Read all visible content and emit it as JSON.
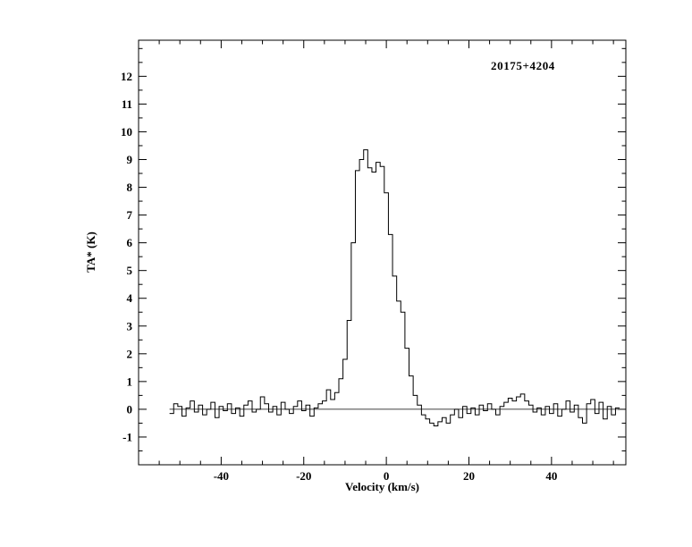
{
  "page": {
    "background": "#ffffff",
    "foreground": "#000000"
  },
  "chart_data": {
    "type": "line",
    "style": "histogram-step",
    "title": "20175+4204",
    "xlabel": "Velocity (km/s)",
    "ylabel": "TA* (K)",
    "xlim": [
      -60,
      58
    ],
    "ylim": [
      -2,
      13.3
    ],
    "x_major_ticks": [
      -40,
      -20,
      0,
      20,
      40
    ],
    "x_tick_labels": [
      "-40",
      "-20",
      "0",
      "20",
      "40"
    ],
    "x_minor_step": 5,
    "y_major_ticks": [
      -1,
      0,
      1,
      2,
      3,
      4,
      5,
      6,
      7,
      8,
      9,
      10,
      11,
      12
    ],
    "y_tick_labels": [
      "-1",
      "0",
      "1",
      "2",
      "3",
      "4",
      "5",
      "6",
      "7",
      "8",
      "9",
      "10",
      "11",
      "12"
    ],
    "y_minor_step": 0.5,
    "zero_line": true,
    "line_color": "#000000",
    "channel_width": 1.0,
    "peak_value": 9.35,
    "peak_velocity": -5,
    "x": [
      -52,
      -51,
      -50,
      -49,
      -48,
      -47,
      -46,
      -45,
      -44,
      -43,
      -42,
      -41,
      -40,
      -39,
      -38,
      -37,
      -36,
      -35,
      -34,
      -33,
      -32,
      -31,
      -30,
      -29,
      -28,
      -27,
      -26,
      -25,
      -24,
      -23,
      -22,
      -21,
      -20,
      -19,
      -18,
      -17,
      -16,
      -15,
      -14,
      -13,
      -12,
      -11,
      -10,
      -9,
      -8,
      -7,
      -6,
      -5,
      -4,
      -3,
      -2,
      -1,
      0,
      1,
      2,
      3,
      4,
      5,
      6,
      7,
      8,
      9,
      10,
      11,
      12,
      13,
      14,
      15,
      16,
      17,
      18,
      19,
      20,
      21,
      22,
      23,
      24,
      25,
      26,
      27,
      28,
      29,
      30,
      31,
      32,
      33,
      34,
      35,
      36,
      37,
      38,
      39,
      40,
      41,
      42,
      43,
      44,
      45,
      46,
      47,
      48,
      49,
      50,
      51,
      52,
      53,
      54,
      55,
      56
    ],
    "y": [
      -0.15,
      0.2,
      0.1,
      -0.25,
      0.05,
      0.3,
      -0.1,
      0.15,
      -0.2,
      0,
      0.25,
      -0.3,
      0.1,
      -0.05,
      0.2,
      -0.15,
      0.05,
      -0.25,
      0.15,
      0.3,
      -0.1,
      0,
      0.45,
      0.2,
      -0.1,
      0.1,
      -0.2,
      0.25,
      0,
      -0.15,
      0.1,
      0.3,
      -0.05,
      0.15,
      -0.25,
      0.05,
      0.2,
      0.3,
      0.7,
      0.35,
      0.6,
      1.1,
      1.8,
      3.2,
      6.0,
      8.6,
      9.0,
      9.35,
      8.7,
      8.55,
      8.9,
      8.75,
      7.8,
      6.3,
      4.8,
      3.9,
      3.5,
      2.2,
      1.2,
      0.5,
      0.15,
      -0.2,
      -0.35,
      -0.5,
      -0.6,
      -0.45,
      -0.3,
      -0.5,
      -0.2,
      0,
      -0.3,
      0.1,
      -0.15,
      0.05,
      -0.2,
      0.15,
      -0.05,
      0.2,
      0,
      -0.2,
      0.1,
      0.25,
      0.4,
      0.3,
      0.45,
      0.55,
      0.3,
      0.15,
      -0.1,
      0.05,
      -0.2,
      0.1,
      -0.15,
      0.2,
      -0.25,
      0,
      0.3,
      -0.1,
      0.15,
      -0.3,
      -0.5,
      0.2,
      0.35,
      -0.15,
      0.25,
      -0.35,
      0.1,
      -0.2,
      0.05
    ]
  }
}
